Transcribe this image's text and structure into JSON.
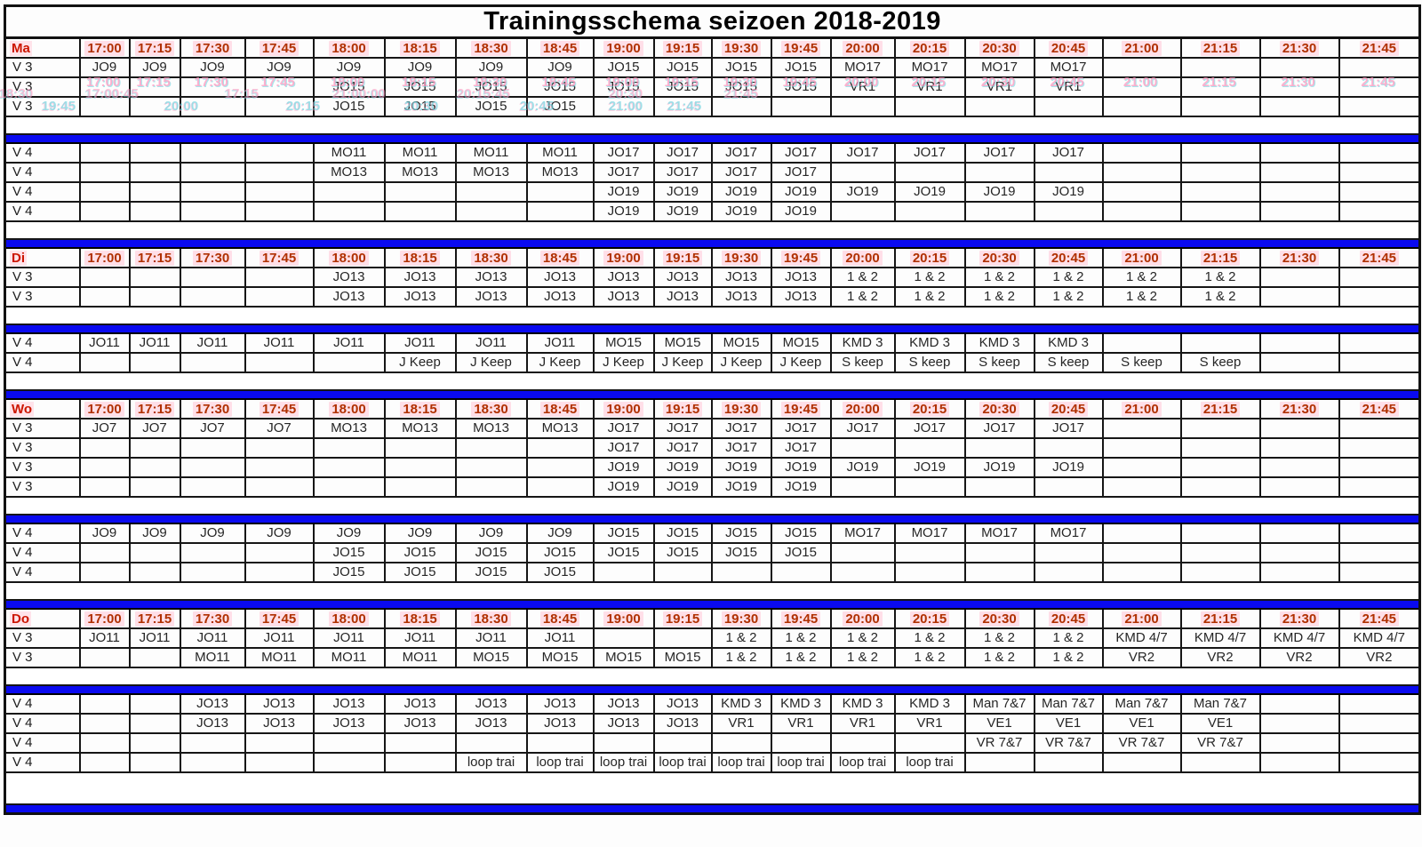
{
  "title": "Trainingsschema seizoen 2018-2019",
  "times": [
    "17:00",
    "17:15",
    "17:30",
    "17:45",
    "18:00",
    "18:15",
    "18:30",
    "18:45",
    "19:00",
    "19:15",
    "19:30",
    "19:45",
    "20:00",
    "20:15",
    "20:30",
    "20:45",
    "21:00",
    "21:15",
    "21:30",
    "21:45"
  ],
  "days": [
    "Ma",
    "Di",
    "Wo",
    "Do"
  ],
  "field_labels": [
    "V 3",
    "V 4"
  ],
  "colors": {
    "separator_bar_blue": "#0a0af0",
    "time_text": "#b03000",
    "time_highlight_pink": "#ffdfe8",
    "day_text_red": "#cc1500",
    "grid_line": "#161616",
    "cell_text": "#262626",
    "ghost_pink": "#ff96be",
    "ghost_cyan": "#69d2de"
  },
  "ghost_artifact": {
    "mid_line": [
      "18:30",
      "17:00:45",
      "17:15",
      "21:00:00",
      "20:15:45",
      "20:30",
      "21:45"
    ],
    "bottom_line": [
      "19:45",
      "20:00",
      "20:15",
      "20:30",
      "20:45",
      "21:00",
      "21:45"
    ]
  },
  "schedule": [
    {
      "kind": "title"
    },
    {
      "kind": "header",
      "day": "Ma"
    },
    {
      "kind": "rows",
      "rows": [
        {
          "label": "V 3",
          "cells": [
            "JO9",
            "JO9",
            "JO9",
            "JO9",
            "JO9",
            "JO9",
            "JO9",
            "JO9",
            "JO15",
            "JO15",
            "JO15",
            "JO15",
            "MO17",
            "MO17",
            "MO17",
            "MO17",
            "",
            "",
            "",
            ""
          ]
        },
        {
          "label": "V 3",
          "cells": [
            "",
            "",
            "",
            "",
            "JO15",
            "JO15",
            "JO15",
            "JO15",
            "JO15",
            "JO15",
            "JO15",
            "JO15",
            "VR1",
            "VR1",
            "VR1",
            "VR1",
            "",
            "",
            "",
            ""
          ]
        },
        {
          "label": "V 3",
          "cells": [
            "",
            "",
            "",
            "",
            "JO15",
            "JO15",
            "JO15",
            "JO15",
            "",
            "",
            "",
            "",
            "",
            "",
            "",
            "",
            "",
            "",
            "",
            ""
          ]
        }
      ]
    },
    {
      "kind": "gap"
    },
    {
      "kind": "bar"
    },
    {
      "kind": "rows",
      "rows": [
        {
          "label": "V 4",
          "cells": [
            "",
            "",
            "",
            "",
            "MO11",
            "MO11",
            "MO11",
            "MO11",
            "JO17",
            "JO17",
            "JO17",
            "JO17",
            "JO17",
            "JO17",
            "JO17",
            "JO17",
            "",
            "",
            "",
            ""
          ]
        },
        {
          "label": "V 4",
          "cells": [
            "",
            "",
            "",
            "",
            "MO13",
            "MO13",
            "MO13",
            "MO13",
            "JO17",
            "JO17",
            "JO17",
            "JO17",
            "",
            "",
            "",
            "",
            "",
            "",
            "",
            ""
          ]
        },
        {
          "label": "V 4",
          "cells": [
            "",
            "",
            "",
            "",
            "",
            "",
            "",
            "",
            "JO19",
            "JO19",
            "JO19",
            "JO19",
            "JO19",
            "JO19",
            "JO19",
            "JO19",
            "",
            "",
            "",
            ""
          ]
        },
        {
          "label": "V 4",
          "cells": [
            "",
            "",
            "",
            "",
            "",
            "",
            "",
            "",
            "JO19",
            "JO19",
            "JO19",
            "JO19",
            "",
            "",
            "",
            "",
            "",
            "",
            "",
            ""
          ]
        }
      ]
    },
    {
      "kind": "gap"
    },
    {
      "kind": "bar"
    },
    {
      "kind": "header",
      "day": "Di"
    },
    {
      "kind": "rows",
      "rows": [
        {
          "label": "V 3",
          "cells": [
            "",
            "",
            "",
            "",
            "JO13",
            "JO13",
            "JO13",
            "JO13",
            "JO13",
            "JO13",
            "JO13",
            "JO13",
            "1 & 2",
            "1 & 2",
            "1 & 2",
            "1 & 2",
            "1 & 2",
            "1 & 2",
            "",
            ""
          ]
        },
        {
          "label": "V 3",
          "cells": [
            "",
            "",
            "",
            "",
            "JO13",
            "JO13",
            "JO13",
            "JO13",
            "JO13",
            "JO13",
            "JO13",
            "JO13",
            "1 & 2",
            "1 & 2",
            "1 & 2",
            "1 & 2",
            "1 & 2",
            "1 & 2",
            "",
            ""
          ]
        }
      ]
    },
    {
      "kind": "gap"
    },
    {
      "kind": "bar"
    },
    {
      "kind": "rows",
      "rows": [
        {
          "label": "V 4",
          "cells": [
            "JO11",
            "JO11",
            "JO11",
            "JO11",
            "JO11",
            "JO11",
            "JO11",
            "JO11",
            "MO15",
            "MO15",
            "MO15",
            "MO15",
            "KMD 3",
            "KMD 3",
            "KMD 3",
            "KMD 3",
            "",
            "",
            "",
            ""
          ]
        },
        {
          "label": "V 4",
          "cells": [
            "",
            "",
            "",
            "",
            "",
            "J Keep",
            "J Keep",
            "J Keep",
            "J Keep",
            "J Keep",
            "J Keep",
            "J Keep",
            "S keep",
            "S keep",
            "S keep",
            "S keep",
            "S keep",
            "S keep",
            "",
            ""
          ]
        }
      ]
    },
    {
      "kind": "gap"
    },
    {
      "kind": "bar"
    },
    {
      "kind": "header",
      "day": "Wo"
    },
    {
      "kind": "rows",
      "rows": [
        {
          "label": "V 3",
          "cells": [
            "JO7",
            "JO7",
            "JO7",
            "JO7",
            "MO13",
            "MO13",
            "MO13",
            "MO13",
            "JO17",
            "JO17",
            "JO17",
            "JO17",
            "JO17",
            "JO17",
            "JO17",
            "JO17",
            "",
            "",
            "",
            ""
          ]
        },
        {
          "label": "V 3",
          "cells": [
            "",
            "",
            "",
            "",
            "",
            "",
            "",
            "",
            "JO17",
            "JO17",
            "JO17",
            "JO17",
            "",
            "",
            "",
            "",
            "",
            "",
            "",
            ""
          ]
        },
        {
          "label": "V 3",
          "cells": [
            "",
            "",
            "",
            "",
            "",
            "",
            "",
            "",
            "JO19",
            "JO19",
            "JO19",
            "JO19",
            "JO19",
            "JO19",
            "JO19",
            "JO19",
            "",
            "",
            "",
            ""
          ]
        },
        {
          "label": "V 3",
          "cells": [
            "",
            "",
            "",
            "",
            "",
            "",
            "",
            "",
            "JO19",
            "JO19",
            "JO19",
            "JO19",
            "",
            "",
            "",
            "",
            "",
            "",
            "",
            ""
          ]
        }
      ]
    },
    {
      "kind": "gap"
    },
    {
      "kind": "bar"
    },
    {
      "kind": "rows",
      "rows": [
        {
          "label": "V 4",
          "cells": [
            "JO9",
            "JO9",
            "JO9",
            "JO9",
            "JO9",
            "JO9",
            "JO9",
            "JO9",
            "JO15",
            "JO15",
            "JO15",
            "JO15",
            "MO17",
            "MO17",
            "MO17",
            "MO17",
            "",
            "",
            "",
            ""
          ]
        },
        {
          "label": "V 4",
          "cells": [
            "",
            "",
            "",
            "",
            "JO15",
            "JO15",
            "JO15",
            "JO15",
            "JO15",
            "JO15",
            "JO15",
            "JO15",
            "",
            "",
            "",
            "",
            "",
            "",
            "",
            ""
          ]
        },
        {
          "label": "V 4",
          "cells": [
            "",
            "",
            "",
            "",
            "JO15",
            "JO15",
            "JO15",
            "JO15",
            "",
            "",
            "",
            "",
            "",
            "",
            "",
            "",
            "",
            "",
            "",
            ""
          ]
        }
      ]
    },
    {
      "kind": "gap"
    },
    {
      "kind": "bar"
    },
    {
      "kind": "header",
      "day": "Do"
    },
    {
      "kind": "rows",
      "rows": [
        {
          "label": "V 3",
          "cells": [
            "JO11",
            "JO11",
            "JO11",
            "JO11",
            "JO11",
            "JO11",
            "JO11",
            "JO11",
            "",
            "",
            "1 & 2",
            "1 & 2",
            "1 & 2",
            "1 & 2",
            "1 & 2",
            "1 & 2",
            "KMD 4/7",
            "KMD 4/7",
            "KMD 4/7",
            "KMD 4/7"
          ]
        },
        {
          "label": "V 3",
          "cells": [
            "",
            "",
            "MO11",
            "MO11",
            "MO11",
            "MO11",
            "MO15",
            "MO15",
            "MO15",
            "MO15",
            "1 & 2",
            "1 & 2",
            "1 & 2",
            "1 & 2",
            "1 & 2",
            "1 & 2",
            "VR2",
            "VR2",
            "VR2",
            "VR2"
          ]
        }
      ]
    },
    {
      "kind": "gap"
    },
    {
      "kind": "bar"
    },
    {
      "kind": "rows",
      "rows": [
        {
          "label": "V 4",
          "cells": [
            "",
            "",
            "JO13",
            "JO13",
            "JO13",
            "JO13",
            "JO13",
            "JO13",
            "JO13",
            "JO13",
            "KMD 3",
            "KMD 3",
            "KMD 3",
            "KMD 3",
            "Man 7&7",
            "Man 7&7",
            "Man 7&7",
            "Man 7&7",
            "",
            ""
          ]
        },
        {
          "label": "V 4",
          "cells": [
            "",
            "",
            "JO13",
            "JO13",
            "JO13",
            "JO13",
            "JO13",
            "JO13",
            "JO13",
            "JO13",
            "VR1",
            "VR1",
            "VR1",
            "VR1",
            "VE1",
            "VE1",
            "VE1",
            "VE1",
            "",
            ""
          ]
        },
        {
          "label": "V 4",
          "cells": [
            "",
            "",
            "",
            "",
            "",
            "",
            "",
            "",
            "",
            "",
            "",
            "",
            "",
            "",
            "VR 7&7",
            "VR 7&7",
            "VR 7&7",
            "VR 7&7",
            "",
            ""
          ]
        },
        {
          "label": "V 4",
          "cells": [
            "",
            "",
            "",
            "",
            "",
            "",
            "loop trai",
            "loop trai",
            "loop trai",
            "loop trai",
            "loop trai",
            "loop trai",
            "loop trai",
            "loop trai",
            "",
            "",
            "",
            "",
            "",
            ""
          ]
        }
      ]
    },
    {
      "kind": "gap-tall"
    },
    {
      "kind": "bar"
    }
  ]
}
